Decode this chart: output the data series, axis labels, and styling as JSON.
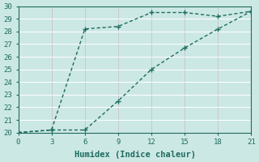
{
  "line1_x": [
    0,
    3,
    6,
    9,
    12,
    15,
    18,
    21
  ],
  "line1_y": [
    20.0,
    20.2,
    28.2,
    28.4,
    29.5,
    29.5,
    29.2,
    29.6
  ],
  "line2_x": [
    0,
    3,
    6,
    9,
    12,
    15,
    18,
    21
  ],
  "line2_y": [
    20.0,
    20.2,
    20.2,
    22.5,
    25.0,
    26.7,
    28.2,
    29.6
  ],
  "line_color": "#1e6b5e",
  "bg_color": "#cce8e5",
  "grid_color_major": "#b8d4d0",
  "grid_color_minor": "#d9eceb",
  "xlabel": "Humidex (Indice chaleur)",
  "xlim": [
    0,
    21
  ],
  "ylim": [
    20,
    30
  ],
  "xticks": [
    0,
    3,
    6,
    9,
    12,
    15,
    18,
    21
  ],
  "yticks": [
    20,
    21,
    22,
    23,
    24,
    25,
    26,
    27,
    28,
    29,
    30
  ],
  "marker": "+",
  "markersize": 5,
  "linewidth": 1.0,
  "font_color": "#1e6b5e",
  "xlabel_fontsize": 7.5
}
